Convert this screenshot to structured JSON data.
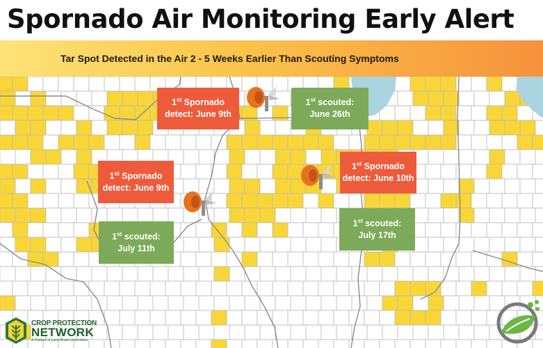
{
  "title": "Spornado Air Monitoring Early Alert",
  "banner": "Tar Spot Detected in the Air 2 - 5 Weeks Earlier Than Scouting Symptoms",
  "colors": {
    "detected_county": "#f9d637",
    "county_fill": "#ffffff",
    "county_border": "#b9b9b9",
    "state_border": "#8a8a8a",
    "lake": "#a9d4e0",
    "spornado_box": "#ee5b3c",
    "scouted_box": "#7daa5a"
  },
  "callouts": [
    {
      "id": "n-spornado",
      "kind": "spornado",
      "sup": "st",
      "line1": "Spornado",
      "line2": "detect: June 9th"
    },
    {
      "id": "n-scouted",
      "kind": "scouted",
      "sup": "st",
      "line1": "scouted:",
      "line2": "June 26th"
    },
    {
      "id": "w-spornado",
      "kind": "spornado",
      "sup": "st",
      "line1": "Spornado",
      "line2": "detect: June 9th"
    },
    {
      "id": "w-scouted",
      "kind": "scouted",
      "sup": "st",
      "line1": "scouted:",
      "line2": "July 11th"
    },
    {
      "id": "e-spornado",
      "kind": "spornado",
      "sup": "st",
      "line1": "Spornado",
      "line2": "detect: June 10th"
    },
    {
      "id": "e-scouted",
      "kind": "scouted",
      "sup": "st",
      "line1": "scouted:",
      "line2": "July 17th"
    }
  ],
  "spornado_icons": [
    "spore-trap-north",
    "spore-trap-west",
    "spore-trap-east"
  ],
  "logos": {
    "cpn": {
      "line1": "CROP PROTECTION",
      "line2": "NETWORK",
      "line3": "A Product of Land-Grant Universities"
    },
    "right_logo": "leaf-swirl-logo"
  }
}
